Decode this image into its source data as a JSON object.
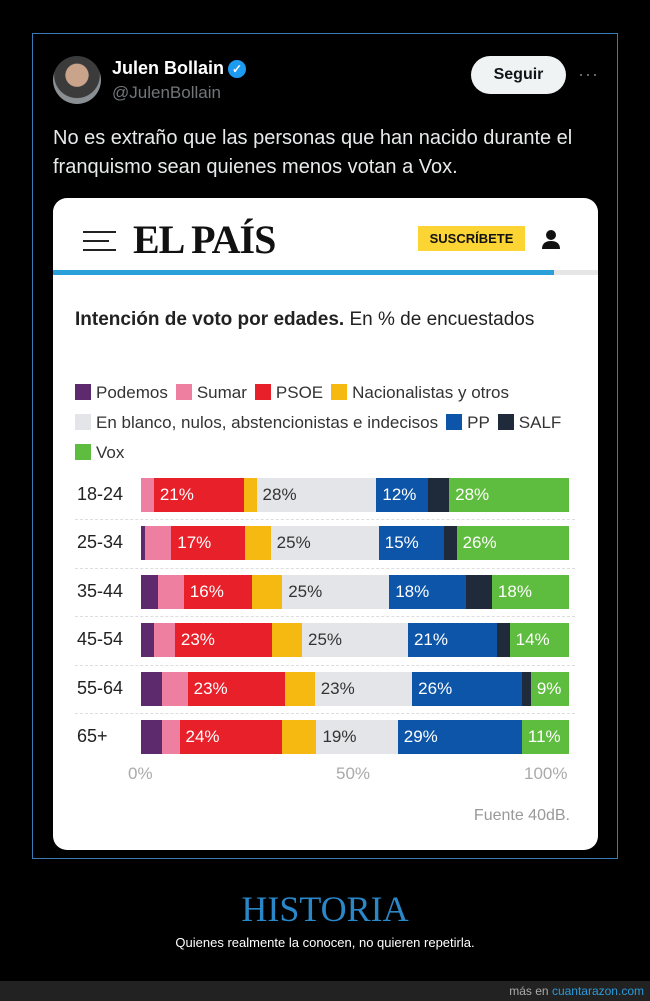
{
  "tweet": {
    "author_name": "Julen Bollain",
    "handle": "@JulenBollain",
    "follow_label": "Seguir",
    "more_label": "···",
    "verified_icon": "check",
    "text": "No es extraño que las personas que han nacido durante el franquismo sean quienes menos votan a Vox."
  },
  "card": {
    "logo": "EL PAÍS",
    "subscribe_label": "SUSCRÍBETE",
    "reading_progress": 0.92,
    "title_bold": "Intención de voto por edades.",
    "title_rest": " En % de encuestados",
    "source": "Fuente 40dB."
  },
  "chart_data": {
    "type": "bar",
    "orientation": "horizontal-stacked-100",
    "categories": [
      "18-24",
      "25-34",
      "35-44",
      "45-54",
      "55-64",
      "65+"
    ],
    "series": [
      {
        "name": "Podemos",
        "color": "#5e2a6e",
        "values": [
          0,
          1,
          4,
          3,
          5,
          5
        ],
        "labeled": false
      },
      {
        "name": "Sumar",
        "color": "#ee7fa0",
        "values": [
          3,
          6,
          6,
          5,
          6,
          4
        ],
        "labeled": false
      },
      {
        "name": "PSOE",
        "color": "#e8202a",
        "values": [
          21,
          17,
          16,
          23,
          23,
          24
        ],
        "labeled": true,
        "label_color": "#ffffff"
      },
      {
        "name": "Nacionalistas y otros",
        "color": "#f5b912",
        "values": [
          3,
          6,
          7,
          7,
          7,
          8
        ],
        "labeled": false
      },
      {
        "name": "En blanco, nulos, abstencionistas e indecisos",
        "color": "#e3e5e8",
        "values": [
          28,
          25,
          25,
          25,
          23,
          19
        ],
        "labeled": true,
        "label_color": "#333333"
      },
      {
        "name": "PP",
        "color": "#0d55a8",
        "values": [
          12,
          15,
          18,
          21,
          26,
          29
        ],
        "labeled": true,
        "label_color": "#ffffff"
      },
      {
        "name": "SALF",
        "color": "#1f2a3a",
        "values": [
          5,
          3,
          6,
          3,
          2,
          0
        ],
        "labeled": false
      },
      {
        "name": "Vox",
        "color": "#5ebd3e",
        "values": [
          28,
          26,
          18,
          14,
          9,
          11
        ],
        "labeled": true,
        "label_color": "#ffffff"
      }
    ],
    "xlim": [
      0,
      100
    ],
    "xticks": [
      "0%",
      "50%",
      "100%"
    ],
    "legend": "top"
  },
  "page": {
    "heading": "HISTORIA",
    "subheading": "Quienes realmente la conocen, no quieren repetirla.",
    "footer_prefix": "más en ",
    "footer_link": "cuantarazon.com"
  }
}
